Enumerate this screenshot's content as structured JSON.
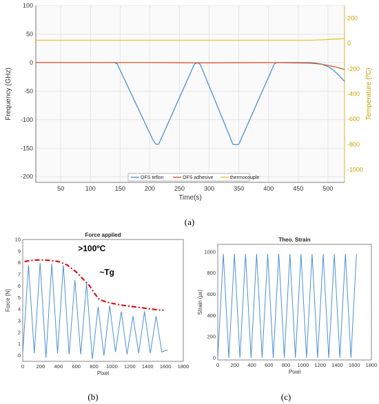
{
  "figure": {
    "caption_a": "(a)",
    "caption_b": "(b)",
    "caption_c": "(c)"
  },
  "colors": {
    "ofs_teflon": "#4a90d6",
    "ofs_adhesive": "#d9542b",
    "thermocouple": "#e8c22a",
    "annotation_line": "#d4141a",
    "strain": "#4a90d6",
    "force": "#4a90d6"
  },
  "chart_data": [
    {
      "id": "a",
      "type": "line",
      "title": "",
      "xlabel": "Time(s)",
      "ylabel": "Frequency (GHz)",
      "ylabel_right": "Temperature (ºC)",
      "xlim": [
        8,
        528
      ],
      "ylim": [
        -210,
        100
      ],
      "ylim_right": [
        -1100,
        300
      ],
      "xticks": [
        50,
        100,
        150,
        200,
        250,
        300,
        350,
        400,
        450,
        500
      ],
      "yticks": [
        100,
        50,
        0,
        -50,
        -100,
        -150,
        -200
      ],
      "yticks_right": [
        200,
        0,
        -200,
        -400,
        -600,
        -800,
        -1000
      ],
      "grid": true,
      "legend_position": "bottom-center",
      "series": [
        {
          "name": "OFS teflon",
          "axis": "left",
          "x": [
            8,
            140,
            145,
            205,
            210,
            215,
            275,
            280,
            285,
            340,
            345,
            350,
            410,
            415,
            470,
            480,
            490,
            500,
            510,
            520,
            528
          ],
          "y": [
            0,
            0,
            -2,
            -135,
            -143,
            -143,
            -3,
            0,
            -3,
            -143,
            -144,
            -143,
            -2,
            0,
            0,
            -1,
            -3,
            -7,
            -14,
            -24,
            -33
          ]
        },
        {
          "name": "OFS adhesive",
          "axis": "left",
          "x": [
            8,
            100,
            200,
            300,
            400,
            470,
            490,
            510,
            528
          ],
          "y": [
            0,
            0,
            0,
            -0.5,
            0,
            -1,
            -3,
            -7,
            -12
          ]
        },
        {
          "name": "thermocouple",
          "axis": "right",
          "x": [
            8,
            100,
            200,
            300,
            400,
            470,
            490,
            510,
            528
          ],
          "y": [
            25,
            25,
            25,
            25,
            25,
            25,
            28,
            34,
            38
          ]
        }
      ]
    },
    {
      "id": "b",
      "type": "line",
      "title": "Force applied",
      "xlabel": "Pixel",
      "ylabel": "Force [N]",
      "xlim": [
        0,
        1800
      ],
      "ylim": [
        -0.5,
        10
      ],
      "xticks": [
        0,
        200,
        400,
        600,
        800,
        1000,
        1200,
        1400,
        1600,
        1800
      ],
      "yticks": [
        0,
        1,
        2,
        3,
        4,
        5,
        6,
        7,
        8,
        9,
        10
      ],
      "annotations": [
        ">100ºC",
        "~Tg"
      ],
      "series": [
        {
          "name": "",
          "x": [
            0,
            65,
            130,
            195,
            260,
            325,
            390,
            455,
            520,
            585,
            650,
            715,
            780,
            845,
            910,
            975,
            1040,
            1105,
            1170,
            1235,
            1300,
            1365,
            1430,
            1495,
            1560,
            1625
          ],
          "y": [
            0.2,
            7.8,
            0.2,
            8.0,
            -0.2,
            7.9,
            0.2,
            7.8,
            0.1,
            6.5,
            0.1,
            6.2,
            -0.3,
            4.2,
            0.0,
            4.3,
            0.3,
            3.8,
            0.1,
            3.4,
            0.2,
            3.8,
            0.2,
            3.4,
            0.3,
            0.5
          ]
        },
        {
          "name": "",
          "style": "dash-dot",
          "x": [
            20,
            100,
            200,
            300,
            400,
            500,
            600,
            700,
            750,
            800,
            850,
            900,
            1000,
            1100,
            1200,
            1300,
            1400,
            1500,
            1580
          ],
          "y": [
            8.1,
            8.2,
            8.25,
            8.2,
            8.1,
            7.8,
            7.2,
            6.4,
            6.0,
            5.4,
            4.9,
            4.7,
            4.5,
            4.35,
            4.25,
            4.15,
            4.05,
            3.95,
            3.9
          ]
        }
      ]
    },
    {
      "id": "c",
      "type": "line",
      "title": "Theo. Strain",
      "xlabel": "Pixel",
      "ylabel": "Strain (με)",
      "xlim": [
        0,
        1800
      ],
      "ylim": [
        -20,
        1070
      ],
      "xticks": [
        0,
        200,
        400,
        600,
        800,
        1000,
        1200,
        1400,
        1600,
        1800
      ],
      "yticks": [
        0,
        200,
        400,
        600,
        800,
        1000
      ],
      "series": [
        {
          "name": "",
          "x": [
            0,
            65,
            130,
            195,
            260,
            325,
            390,
            455,
            520,
            585,
            650,
            715,
            780,
            845,
            910,
            975,
            1040,
            1105,
            1170,
            1235,
            1300,
            1365,
            1430,
            1495,
            1560,
            1625
          ],
          "y": [
            0,
            980,
            0,
            980,
            0,
            980,
            0,
            980,
            0,
            980,
            0,
            980,
            0,
            980,
            0,
            980,
            0,
            980,
            0,
            980,
            0,
            980,
            0,
            980,
            0,
            980
          ]
        }
      ]
    }
  ]
}
